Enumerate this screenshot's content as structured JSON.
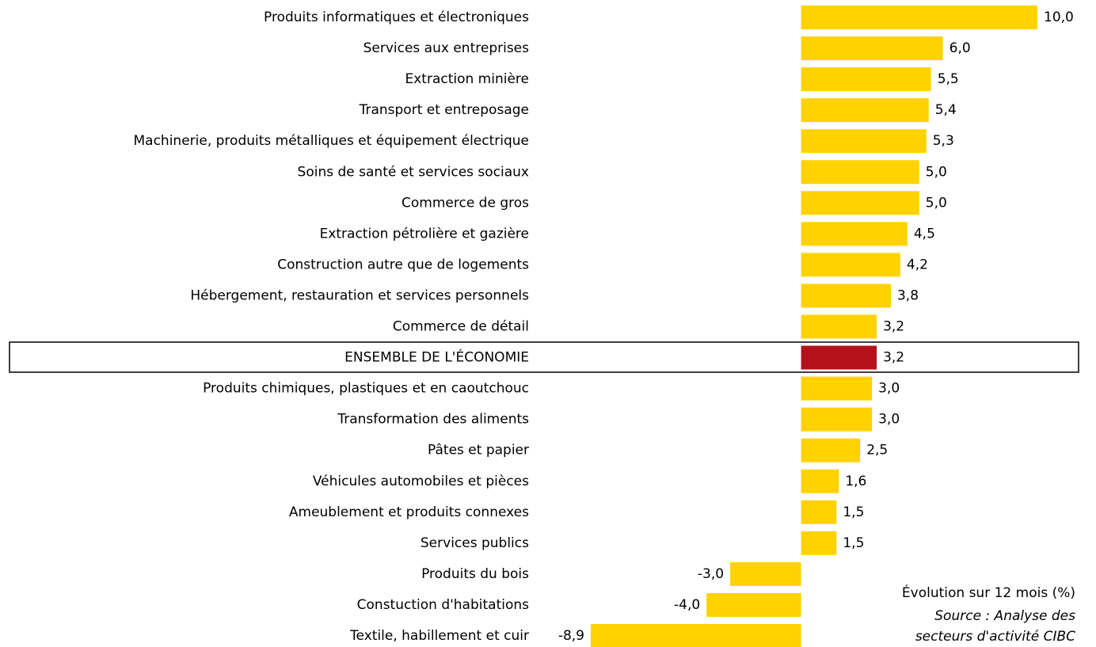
{
  "chart_data": {
    "type": "barh",
    "categories": [
      "Produits informatiques et électroniques",
      "Services aux entreprises",
      "Extraction minière",
      "Transport et entreposage",
      "Machinerie, produits métalliques et équipement électrique",
      "Soins de santé et services sociaux",
      "Commerce de gros",
      "Extraction pétrolière et gazière",
      "Construction autre que de logements",
      "Hébergement, restauration et services personnels",
      "Commerce de détail",
      "ENSEMBLE DE L'ÉCONOMIE",
      "Produits chimiques, plastiques et en caoutchouc",
      "Transformation des aliments",
      "Pâtes et papier",
      "Véhicules automobiles et pièces",
      "Ameublement et produits connexes",
      "Services publics",
      "Produits du bois",
      "Constuction d'habitations",
      "Textile, habillement et cuir"
    ],
    "values": [
      10.0,
      6.0,
      5.5,
      5.4,
      5.3,
      5.0,
      5.0,
      4.5,
      4.2,
      3.8,
      3.2,
      3.2,
      3.0,
      3.0,
      2.5,
      1.6,
      1.5,
      1.5,
      -3.0,
      -4.0,
      -8.9
    ],
    "value_labels": [
      "10,0",
      "6,0",
      "5,5",
      "5,4",
      "5,3",
      "5,0",
      "5,0",
      "4,5",
      "4,2",
      "3,8",
      "3,2",
      "3,2",
      "3,0",
      "3,0",
      "2,5",
      "1,6",
      "1,5",
      "1,5",
      "-3,0",
      "-4,0",
      "-8,9"
    ],
    "colors": [
      "#ffd200",
      "#ffd200",
      "#ffd200",
      "#ffd200",
      "#ffd200",
      "#ffd200",
      "#ffd200",
      "#ffd200",
      "#ffd200",
      "#ffd200",
      "#ffd200",
      "#b5121b",
      "#ffd200",
      "#ffd200",
      "#ffd200",
      "#ffd200",
      "#ffd200",
      "#ffd200",
      "#ffd200",
      "#ffd200",
      "#ffd200"
    ],
    "annotation": "Évolution sur 12 mois (%)",
    "source": [
      "Source : Analyse des",
      "secteurs d'activité CIBC"
    ]
  }
}
